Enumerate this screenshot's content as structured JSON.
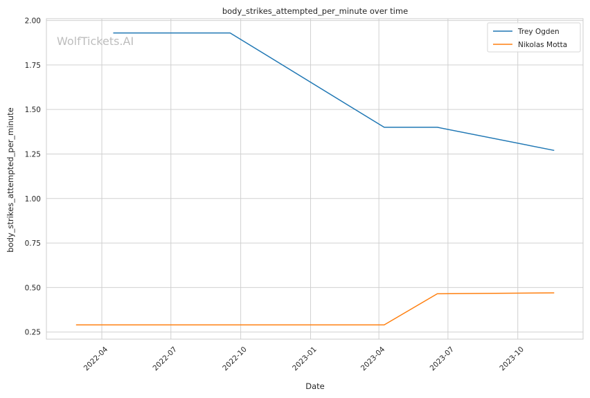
{
  "chart_data": {
    "type": "line",
    "title": "body_strikes_attempted_per_minute over time",
    "xlabel": "Date",
    "ylabel": "body_strikes_attempted_per_minute",
    "watermark": "WolfTickets.AI",
    "legend_position": "top-right",
    "grid": true,
    "xlim": [
      "2022-01-18",
      "2023-12-26"
    ],
    "ylim": [
      0.21,
      2.01
    ],
    "x_ticks": [
      "2022-04",
      "2022-07",
      "2022-10",
      "2023-01",
      "2023-04",
      "2023-07",
      "2023-10"
    ],
    "y_ticks": [
      "0.25",
      "0.50",
      "0.75",
      "1.00",
      "1.25",
      "1.50",
      "1.75",
      "2.00"
    ],
    "series": [
      {
        "name": "Trey Ogden",
        "color": "#1f77b4",
        "x": [
          "2022-04-16",
          "2022-09-17",
          "2023-04-08",
          "2023-06-17",
          "2023-11-18"
        ],
        "y": [
          1.93,
          1.93,
          1.4,
          1.4,
          1.27
        ]
      },
      {
        "name": "Nikolas Motta",
        "color": "#ff7f0e",
        "x": [
          "2022-02-26",
          "2023-04-08",
          "2023-06-17",
          "2023-11-18"
        ],
        "y": [
          0.29,
          0.29,
          0.465,
          0.47
        ]
      }
    ]
  }
}
